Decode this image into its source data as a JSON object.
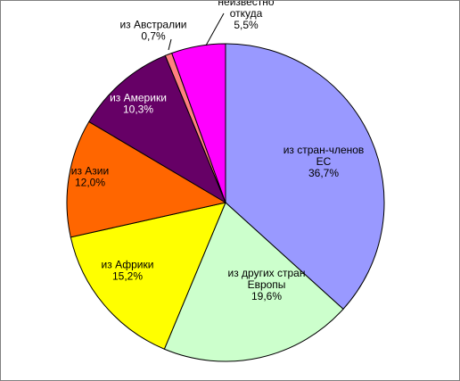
{
  "chart_data": {
    "type": "pie",
    "title": "",
    "start_angle_deg": 0,
    "direction": "clockwise",
    "slices": [
      {
        "label_lines": [
          "из стран-членов",
          "ЕС"
        ],
        "percent_label": "36,7%",
        "value": 36.7,
        "color": "#9999ff",
        "label_color": "#000000"
      },
      {
        "label_lines": [
          "из других стран",
          "Европы"
        ],
        "percent_label": "19,6%",
        "value": 19.6,
        "color": "#ccffcc",
        "label_color": "#000000"
      },
      {
        "label_lines": [
          "из Африки"
        ],
        "percent_label": "15,2%",
        "value": 15.2,
        "color": "#ffff00",
        "label_color": "#000000"
      },
      {
        "label_lines": [
          "из Азии"
        ],
        "percent_label": "12,0%",
        "value": 12.0,
        "color": "#ff6600",
        "label_color": "#000000"
      },
      {
        "label_lines": [
          "из Америки"
        ],
        "percent_label": "10,3%",
        "value": 10.3,
        "color": "#660066",
        "label_color": "#ffffff"
      },
      {
        "label_lines": [
          "из Австралии"
        ],
        "percent_label": "0,7%",
        "value": 0.7,
        "color": "#ff8080",
        "label_color": "#000000"
      },
      {
        "label_lines": [
          "неизвестно",
          "откуда"
        ],
        "percent_label": "5,5%",
        "value": 5.5,
        "color": "#ff00ff",
        "label_color": "#000000"
      }
    ]
  }
}
